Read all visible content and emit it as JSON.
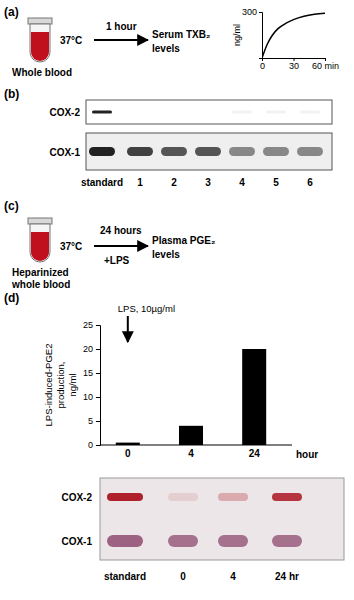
{
  "chart_data": [
    {
      "type": "line",
      "x": [
        0,
        5,
        10,
        15,
        20,
        30,
        40,
        50,
        60
      ],
      "values": [
        0,
        90,
        150,
        190,
        215,
        250,
        272,
        285,
        292
      ],
      "xlim": [
        0,
        60
      ],
      "ylim": [
        0,
        300
      ],
      "xticks": [
        0,
        30,
        {
          "value": 60,
          "label": "60 min"
        }
      ],
      "yticks": [
        300
      ],
      "y_label": "ng/ml",
      "color": "#000000",
      "line_style": "solid",
      "grid": false
    },
    {
      "type": "bar",
      "annotation": "LPS, 10µg/ml",
      "categories": [
        "0",
        "4",
        "24"
      ],
      "values": [
        0.5,
        4,
        20
      ],
      "x_label": "hour",
      "y_label": [
        "LPS-induced-PGE2",
        "production,",
        "ng/ml"
      ],
      "ylim": [
        0,
        25
      ],
      "yticks": [
        0,
        5,
        10,
        15,
        20,
        25
      ],
      "color": "#000000",
      "grid": false
    }
  ],
  "figure": {
    "panel_labels": [
      "(a)",
      "(b)",
      "(c)",
      "(d)"
    ],
    "panel_a": {
      "sample": "Whole blood",
      "time": "1 hour",
      "temperature": "37°C",
      "readout": [
        "Serum TXB₂",
        "levels"
      ]
    },
    "panel_b": {
      "rows": [
        "COX-2",
        "COX-1"
      ],
      "lanes": [
        "standard",
        "1",
        "2",
        "3",
        "4",
        "5",
        "6"
      ]
    },
    "panel_c": {
      "sample": [
        "Heparinized",
        "whole blood"
      ],
      "time": "24 hours",
      "temperature": "37°C",
      "treatment": "+LPS",
      "readout": [
        "Plasma PGE₂",
        "levels"
      ]
    },
    "panel_d_blot": {
      "rows": [
        "COX-2",
        "COX-1"
      ],
      "lanes": [
        "standard",
        "0",
        "4",
        "24 hr"
      ]
    }
  }
}
